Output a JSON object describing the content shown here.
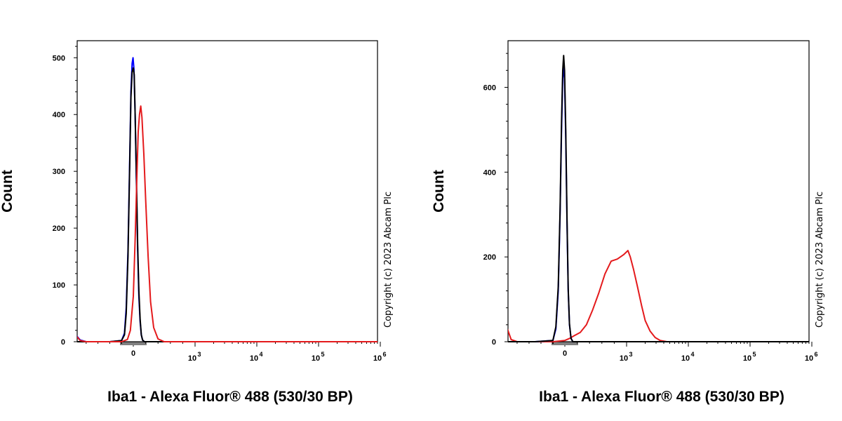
{
  "chart_data": [
    {
      "type": "line",
      "xlabel": "Iba1 - Alexa Fluor® 488 (530/30 BP)",
      "ylabel": "Count",
      "x_scale": "biexponential",
      "y_range": [
        0,
        530
      ],
      "y_ticks": [
        0,
        100,
        200,
        300,
        400,
        500
      ],
      "x_ticks": [
        {
          "value": 0,
          "label": "0"
        },
        {
          "value": 1000,
          "base": "10",
          "exp": "3"
        },
        {
          "value": 10000,
          "base": "10",
          "exp": "4"
        },
        {
          "value": 100000,
          "base": "10",
          "exp": "5"
        },
        {
          "value": 1000000,
          "base": "10",
          "exp": "6"
        }
      ],
      "copyright": "Copyright (c) 2023 Abcam Plc",
      "series": [
        {
          "color": "#0000ff",
          "points": [
            [
              -1000,
              15
            ],
            [
              -900,
              3
            ],
            [
              -800,
              0
            ],
            [
              -400,
              0
            ],
            [
              -200,
              2
            ],
            [
              -150,
              15
            ],
            [
              -120,
              60
            ],
            [
              -90,
              160
            ],
            [
              -60,
              330
            ],
            [
              -40,
              440
            ],
            [
              -20,
              490
            ],
            [
              -5,
              500
            ],
            [
              10,
              480
            ],
            [
              30,
              400
            ],
            [
              50,
              280
            ],
            [
              70,
              160
            ],
            [
              90,
              80
            ],
            [
              110,
              35
            ],
            [
              130,
              12
            ],
            [
              150,
              3
            ],
            [
              180,
              0
            ],
            [
              1000000,
              0
            ]
          ]
        },
        {
          "color": "#000000",
          "points": [
            [
              -1000,
              0
            ],
            [
              -400,
              0
            ],
            [
              -200,
              2
            ],
            [
              -150,
              12
            ],
            [
              -120,
              50
            ],
            [
              -90,
              150
            ],
            [
              -60,
              320
            ],
            [
              -40,
              430
            ],
            [
              -20,
              475
            ],
            [
              0,
              482
            ],
            [
              15,
              470
            ],
            [
              30,
              400
            ],
            [
              50,
              290
            ],
            [
              70,
              170
            ],
            [
              90,
              90
            ],
            [
              110,
              40
            ],
            [
              130,
              12
            ],
            [
              150,
              3
            ],
            [
              180,
              0
            ],
            [
              1000000,
              0
            ]
          ]
        },
        {
          "color": "#e41a1c",
          "points": [
            [
              -1000,
              14
            ],
            [
              -900,
              2
            ],
            [
              -800,
              0
            ],
            [
              -200,
              0
            ],
            [
              -100,
              4
            ],
            [
              -50,
              20
            ],
            [
              0,
              80
            ],
            [
              30,
              180
            ],
            [
              60,
              300
            ],
            [
              80,
              370
            ],
            [
              100,
              400
            ],
            [
              120,
              415
            ],
            [
              140,
              395
            ],
            [
              170,
              330
            ],
            [
              200,
              250
            ],
            [
              240,
              150
            ],
            [
              280,
              70
            ],
            [
              330,
              25
            ],
            [
              400,
              5
            ],
            [
              500,
              0
            ],
            [
              1000000,
              0
            ]
          ]
        }
      ]
    },
    {
      "type": "line",
      "xlabel": "Iba1 - Alexa Fluor® 488 (530/30 BP)",
      "ylabel": "Count",
      "x_scale": "biexponential",
      "y_range": [
        0,
        710
      ],
      "y_ticks": [
        0,
        200,
        400,
        600
      ],
      "x_ticks": [
        {
          "value": 0,
          "label": "0"
        },
        {
          "value": 1000,
          "base": "10",
          "exp": "3"
        },
        {
          "value": 10000,
          "base": "10",
          "exp": "4"
        },
        {
          "value": 100000,
          "base": "10",
          "exp": "5"
        },
        {
          "value": 1000000,
          "base": "10",
          "exp": "6"
        }
      ],
      "copyright": "Copyright (c) 2023 Abcam Plc",
      "series": [
        {
          "color": "#e41a1c",
          "points": [
            [
              -1000,
              45
            ],
            [
              -900,
              5
            ],
            [
              -800,
              0
            ],
            [
              -200,
              0
            ],
            [
              0,
              3
            ],
            [
              80,
              8
            ],
            [
              150,
              14
            ],
            [
              250,
              22
            ],
            [
              350,
              40
            ],
            [
              450,
              75
            ],
            [
              550,
              115
            ],
            [
              650,
              160
            ],
            [
              750,
              190
            ],
            [
              850,
              195
            ],
            [
              950,
              205
            ],
            [
              1050,
              215
            ],
            [
              1150,
              200
            ],
            [
              1300,
              170
            ],
            [
              1500,
              130
            ],
            [
              1750,
              85
            ],
            [
              2000,
              50
            ],
            [
              2400,
              25
            ],
            [
              2900,
              10
            ],
            [
              3500,
              3
            ],
            [
              4500,
              0
            ],
            [
              1000000,
              0
            ]
          ]
        },
        {
          "color": "#0000ff",
          "points": [
            [
              -1000,
              0
            ],
            [
              -500,
              0
            ],
            [
              -200,
              3
            ],
            [
              -150,
              30
            ],
            [
              -110,
              120
            ],
            [
              -80,
              300
            ],
            [
              -55,
              500
            ],
            [
              -35,
              620
            ],
            [
              -20,
              650
            ],
            [
              -5,
              620
            ],
            [
              15,
              480
            ],
            [
              35,
              280
            ],
            [
              55,
              120
            ],
            [
              75,
              40
            ],
            [
              100,
              8
            ],
            [
              130,
              0
            ],
            [
              1000000,
              0
            ]
          ]
        },
        {
          "color": "#000000",
          "points": [
            [
              -1000,
              0
            ],
            [
              -500,
              0
            ],
            [
              -200,
              3
            ],
            [
              -150,
              35
            ],
            [
              -110,
              130
            ],
            [
              -80,
              310
            ],
            [
              -55,
              520
            ],
            [
              -35,
              640
            ],
            [
              -20,
              675
            ],
            [
              -5,
              640
            ],
            [
              15,
              500
            ],
            [
              35,
              290
            ],
            [
              55,
              125
            ],
            [
              75,
              42
            ],
            [
              100,
              8
            ],
            [
              130,
              0
            ],
            [
              1000000,
              0
            ]
          ]
        }
      ]
    }
  ]
}
